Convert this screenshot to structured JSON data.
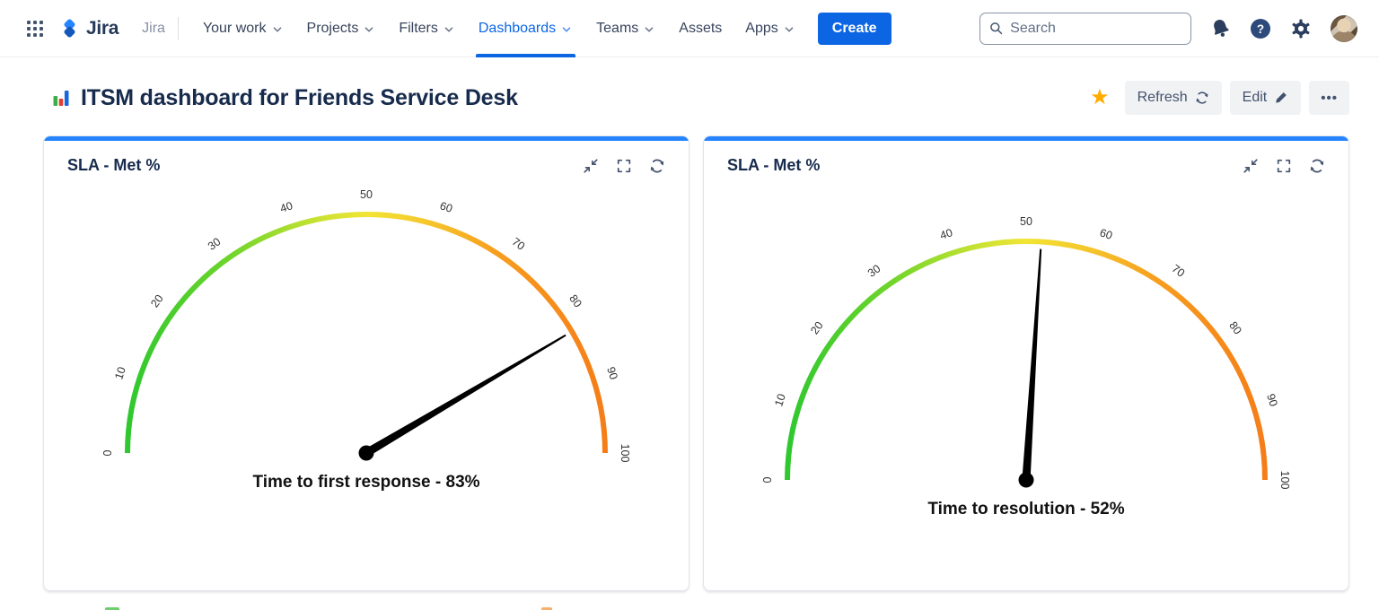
{
  "navbar": {
    "brand": "Jira",
    "site_label": "Jira",
    "items": [
      {
        "label": "Your work",
        "has_chevron": true,
        "active": false
      },
      {
        "label": "Projects",
        "has_chevron": true,
        "active": false
      },
      {
        "label": "Filters",
        "has_chevron": true,
        "active": false
      },
      {
        "label": "Dashboards",
        "has_chevron": true,
        "active": true
      },
      {
        "label": "Teams",
        "has_chevron": true,
        "active": false
      },
      {
        "label": "Assets",
        "has_chevron": false,
        "active": false
      },
      {
        "label": "Apps",
        "has_chevron": true,
        "active": false
      }
    ],
    "create_label": "Create",
    "search": {
      "placeholder": "Search"
    },
    "icons": [
      "app-grid-icon",
      "bell-icon",
      "help-icon",
      "gear-icon",
      "avatar"
    ]
  },
  "page": {
    "title": "ITSM dashboard for Friends Service Desk",
    "favorite_icon": "★",
    "actions": {
      "refresh": "Refresh",
      "edit": "Edit",
      "more": "•••"
    }
  },
  "chart_data": [
    {
      "type": "gauge",
      "panel_title": "SLA - Met %",
      "label": "Time to first response",
      "value": 83,
      "display": "Time to first response - 83%",
      "min": 0,
      "max": 100,
      "ticks": [
        0,
        10,
        20,
        30,
        40,
        50,
        60,
        70,
        80,
        90,
        100
      ]
    },
    {
      "type": "gauge",
      "panel_title": "SLA - Met %",
      "label": "Time to resolution",
      "value": 52,
      "display": "Time to resolution - 52%",
      "min": 0,
      "max": 100,
      "ticks": [
        0,
        10,
        20,
        30,
        40,
        50,
        60,
        70,
        80,
        90,
        100
      ]
    }
  ],
  "colors": {
    "accent_blue": "#2684FF",
    "nav_active_blue": "#0C66E4",
    "create_blue": "#0C66E4",
    "navy_text": "#172B4D",
    "icon_navy": "#44546F",
    "star_yellow": "#FFAB00",
    "needle_black": "#000000",
    "tick_text": "#333333",
    "gauge_gradient": [
      [
        "0%",
        "#2FC82F"
      ],
      [
        "22%",
        "#71D52B"
      ],
      [
        "40%",
        "#C9E233"
      ],
      [
        "50%",
        "#F2E434"
      ],
      [
        "63%",
        "#F5C62B"
      ],
      [
        "77%",
        "#F79E1F"
      ],
      [
        "100%",
        "#F57D18"
      ]
    ]
  }
}
